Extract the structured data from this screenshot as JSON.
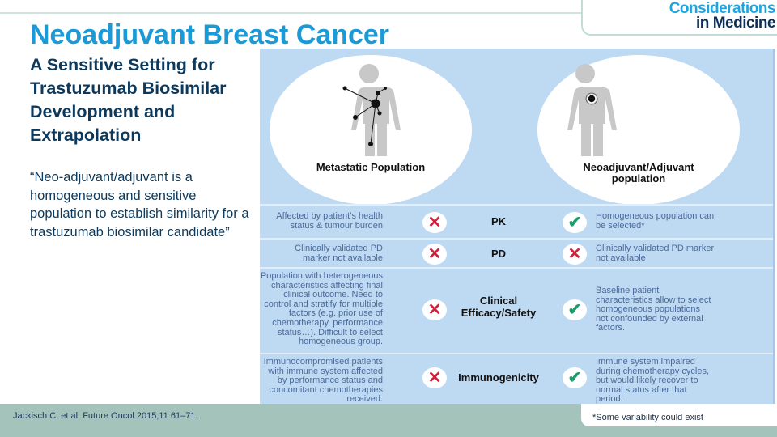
{
  "header": {
    "title": "Neoadjuvant Breast Cancer",
    "subtitle": "A Sensitive Setting for Trastuzumab Biosimilar Development and Extrapolation",
    "logo": {
      "line1": "Considerations",
      "line2": "in Medicine"
    }
  },
  "quote": "“Neo-adjuvant/adjuvant is a homogeneous and sensitive population to establish similarity for a trastuzumab biosimilar candidate”",
  "figure": {
    "left_population": "Metastatic Population",
    "right_population": "Neoadjuvant/Adjuvant population",
    "rows": [
      {
        "label": "PK",
        "left": "Affected by patient’s health status & tumour burden",
        "left_icon": "cross-icon",
        "right_icon": "check-icon",
        "right": "Homogeneous population can be selected*"
      },
      {
        "label": "PD",
        "left": "Clinically validated PD marker not available",
        "left_icon": "cross-icon",
        "right_icon": "cross-icon",
        "right": "Clinically validated PD marker not available"
      },
      {
        "label": "Clinical Efficacy/Safety",
        "left": "Population with heterogeneous characteristics affecting final clinical outcome. Need to control and stratify for multiple factors (e.g. prior use of chemotherapy, performance status…). Difficult to select homogeneous group.",
        "left_icon": "cross-icon",
        "right_icon": "check-icon",
        "right": "Baseline patient characteristics allow to select homogeneous populations not confounded by external factors."
      },
      {
        "label": "Immunogenicity",
        "left": "Immunocompromised patients with immune system affected by performance status and concomitant chemotherapies received.",
        "left_icon": "cross-icon",
        "right_icon": "check-icon",
        "right": "Immune system impaired during chemotherapy cycles, but would likely recover to normal status after that period."
      }
    ],
    "colors": {
      "background": "#bed9f2",
      "cross": "#d0213d",
      "check": "#1f9a6a"
    }
  },
  "footer": {
    "reference": "Jackisch C, et al. Future Oncol 2015;11:61–71.",
    "footnote": "*Some variability could exist"
  },
  "colors": {
    "title": "#1a9ad6",
    "text": "#0d3a5c",
    "footer_bar": "#a4c4bb"
  }
}
